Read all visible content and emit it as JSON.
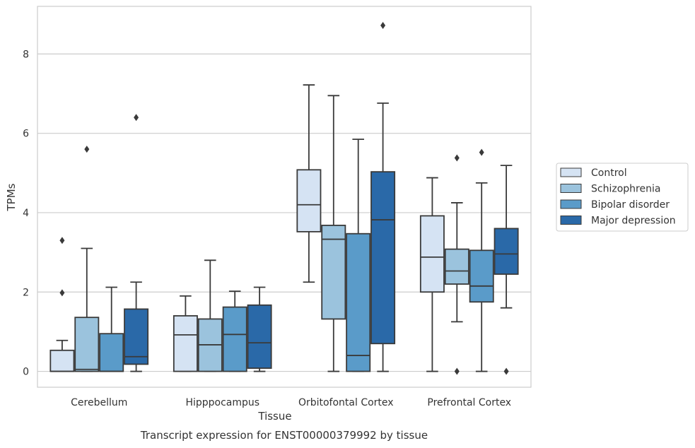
{
  "caption": "Transcript expression for ENST00000379992 by tissue",
  "chart_data": {
    "type": "boxplot",
    "title": "",
    "xlabel": "Tissue",
    "ylabel": "TPMs",
    "ylim": [
      -0.4,
      9.2
    ],
    "yticks": [
      0,
      2,
      4,
      6,
      8
    ],
    "grid": "horizontal",
    "legend_position": "outside-right",
    "categories": [
      "Cerebellum",
      "Hipppocampus",
      "Orbitofontal Cortex",
      "Prefrontal Cortex"
    ],
    "series": [
      {
        "name": "Control",
        "color": "#d5e3f3",
        "boxes": [
          {
            "whisker_low": 0,
            "q1": 0,
            "median": 0,
            "q3": 0.53,
            "whisker_high": 0.78,
            "outliers": [
              1.98,
              3.3
            ]
          },
          {
            "whisker_low": 0,
            "q1": 0,
            "median": 0.92,
            "q3": 1.4,
            "whisker_high": 1.9,
            "outliers": []
          },
          {
            "whisker_low": 2.25,
            "q1": 3.52,
            "median": 4.2,
            "q3": 5.08,
            "whisker_high": 7.22,
            "outliers": []
          },
          {
            "whisker_low": 0,
            "q1": 2.0,
            "median": 2.88,
            "q3": 3.92,
            "whisker_high": 4.88,
            "outliers": []
          }
        ]
      },
      {
        "name": "Schizophrenia",
        "color": "#9bc3dd",
        "boxes": [
          {
            "whisker_low": 0,
            "q1": 0,
            "median": 0.05,
            "q3": 1.36,
            "whisker_high": 3.1,
            "outliers": [
              5.6
            ]
          },
          {
            "whisker_low": 0,
            "q1": 0,
            "median": 0.67,
            "q3": 1.32,
            "whisker_high": 2.8,
            "outliers": []
          },
          {
            "whisker_low": 0,
            "q1": 1.32,
            "median": 3.33,
            "q3": 3.68,
            "whisker_high": 6.95,
            "outliers": []
          },
          {
            "whisker_low": 1.25,
            "q1": 2.2,
            "median": 2.53,
            "q3": 3.08,
            "whisker_high": 4.25,
            "outliers": [
              0,
              5.38
            ]
          }
        ]
      },
      {
        "name": "Bipolar disorder",
        "color": "#5a9bc9",
        "boxes": [
          {
            "whisker_low": 0,
            "q1": 0,
            "median": 0,
            "q3": 0.95,
            "whisker_high": 2.12,
            "outliers": []
          },
          {
            "whisker_low": 0,
            "q1": 0,
            "median": 0.93,
            "q3": 1.62,
            "whisker_high": 2.02,
            "outliers": []
          },
          {
            "whisker_low": 0,
            "q1": 0,
            "median": 0.4,
            "q3": 3.47,
            "whisker_high": 5.85,
            "outliers": []
          },
          {
            "whisker_low": 0,
            "q1": 1.75,
            "median": 2.15,
            "q3": 3.05,
            "whisker_high": 4.75,
            "outliers": [
              5.52
            ]
          }
        ]
      },
      {
        "name": "Major depression",
        "color": "#2a69a8",
        "boxes": [
          {
            "whisker_low": 0,
            "q1": 0.18,
            "median": 0.37,
            "q3": 1.57,
            "whisker_high": 2.25,
            "outliers": [
              6.4
            ]
          },
          {
            "whisker_low": 0,
            "q1": 0.08,
            "median": 0.72,
            "q3": 1.67,
            "whisker_high": 2.12,
            "outliers": []
          },
          {
            "whisker_low": 0,
            "q1": 0.7,
            "median": 3.82,
            "q3": 5.03,
            "whisker_high": 6.76,
            "outliers": [
              8.72
            ]
          },
          {
            "whisker_low": 1.6,
            "q1": 2.45,
            "median": 2.96,
            "q3": 3.6,
            "whisker_high": 5.19,
            "outliers": [
              0
            ]
          }
        ]
      }
    ]
  }
}
